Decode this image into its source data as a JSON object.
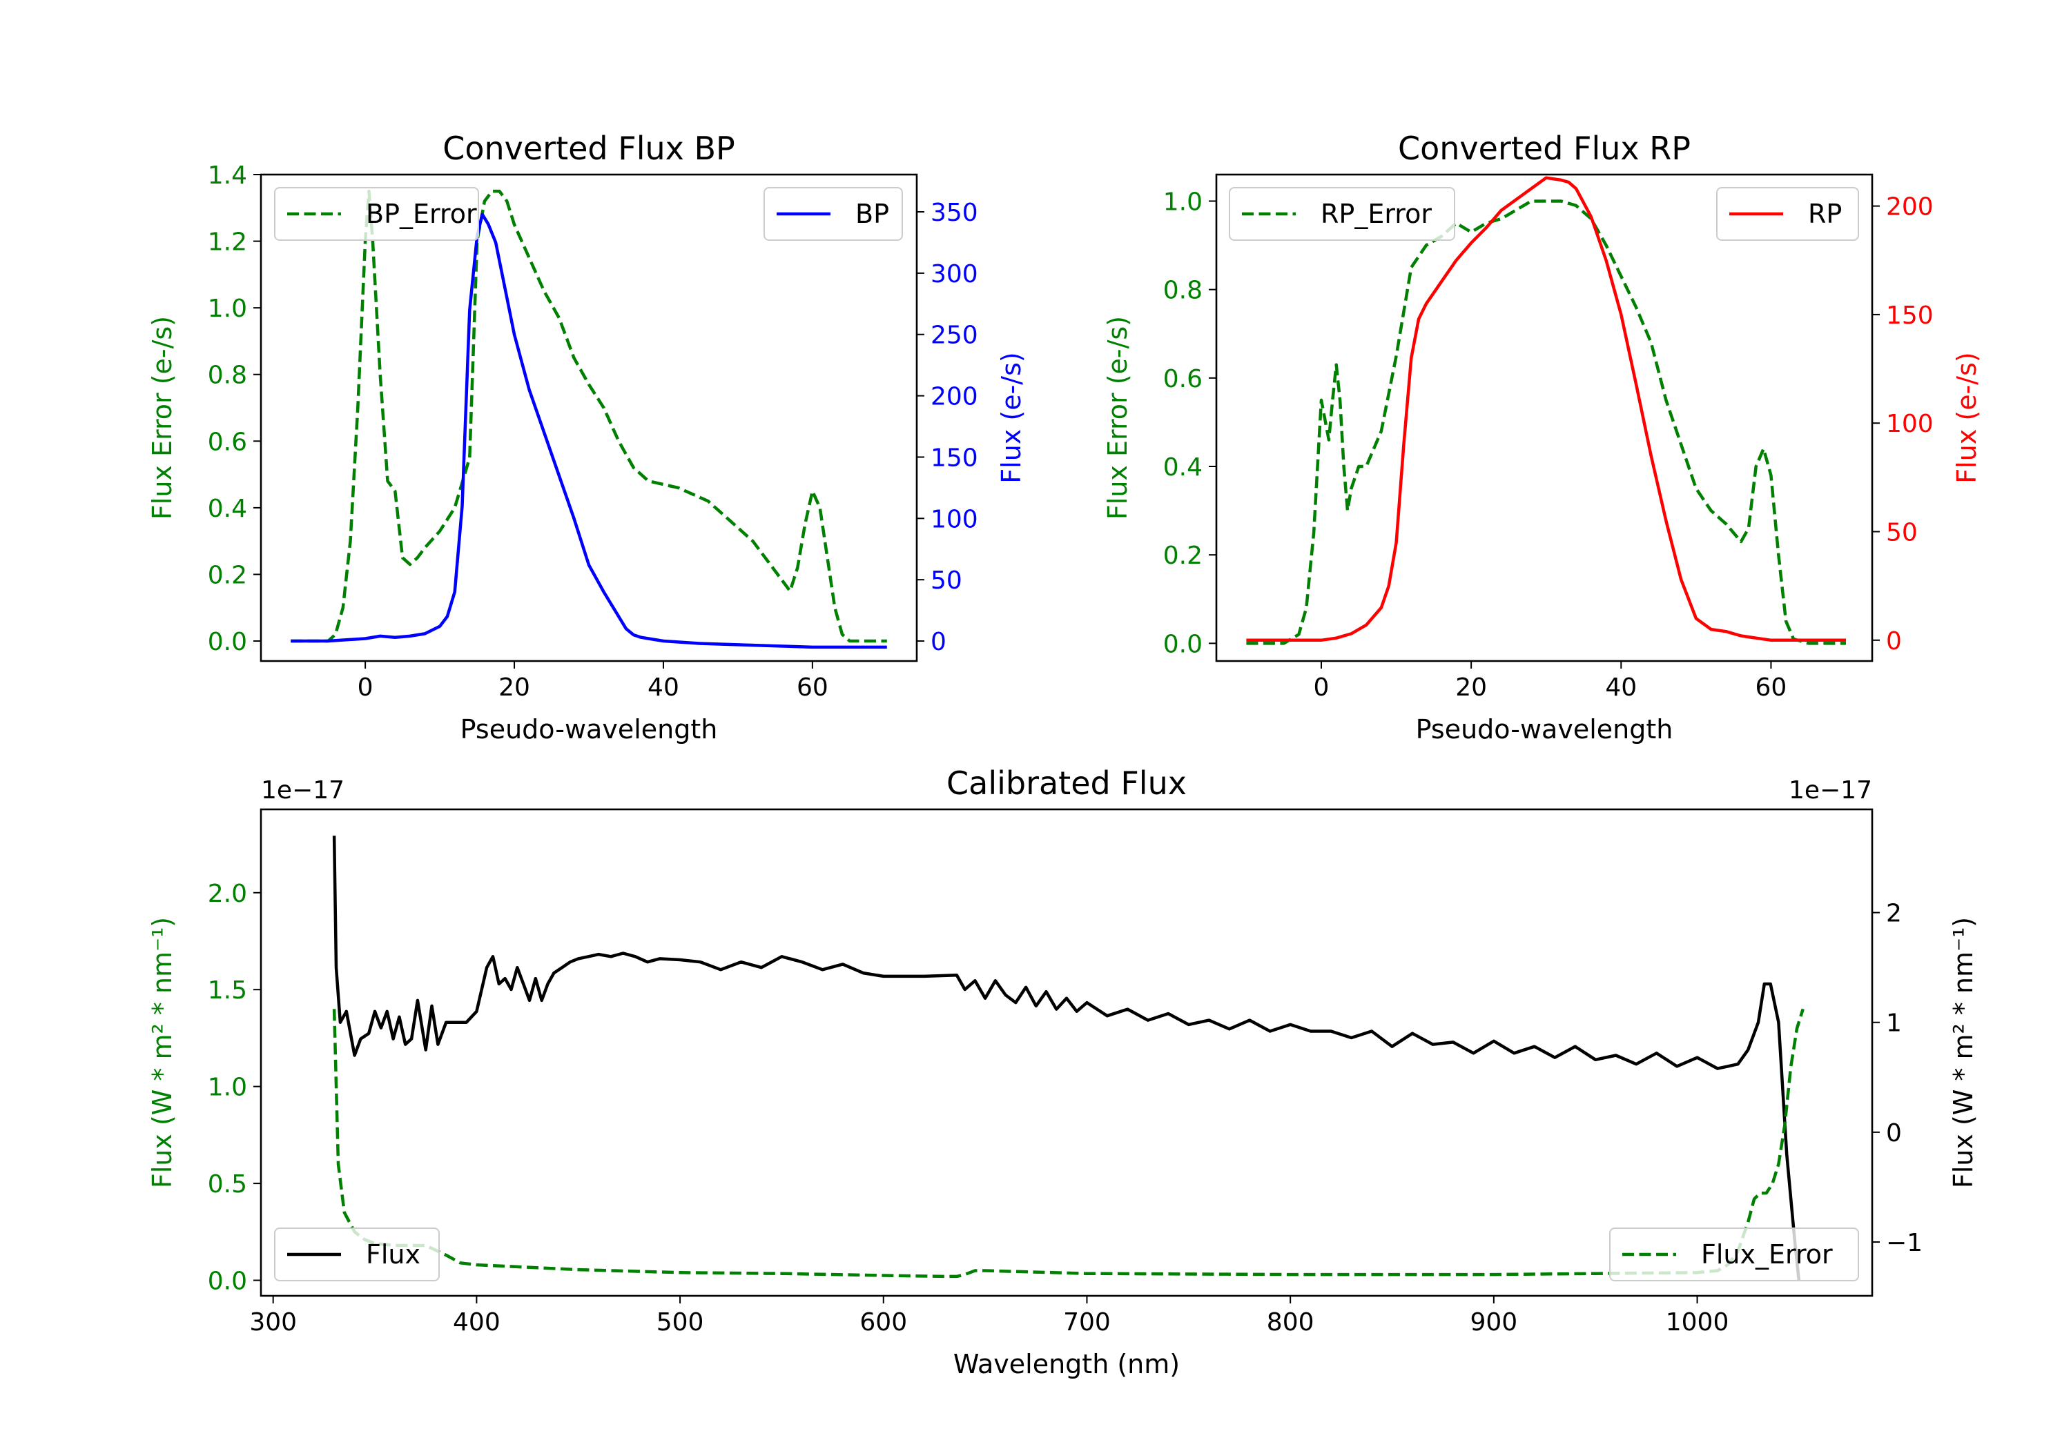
{
  "chart_data": [
    {
      "type": "line",
      "title": "Converted Flux BP",
      "xlabel": "Pseudo-wavelength",
      "ylabel": "Flux Error (e-/s)",
      "ylabel_right": "Flux (e-/s)",
      "xlim": [
        -14,
        74
      ],
      "ylim": [
        -0.06,
        1.4
      ],
      "ylim_right": [
        -16.3,
        380.4
      ],
      "xticks": [
        {
          "v": 0,
          "label": "0"
        },
        {
          "v": 20,
          "label": "20"
        },
        {
          "v": 40,
          "label": "40"
        },
        {
          "v": 60,
          "label": "60"
        }
      ],
      "yticks": [
        {
          "v": 0,
          "label": "0.0"
        },
        {
          "v": 0.2,
          "label": "0.2"
        },
        {
          "v": 0.4,
          "label": "0.4"
        },
        {
          "v": 0.6,
          "label": "0.6"
        },
        {
          "v": 0.8,
          "label": "0.8"
        },
        {
          "v": 1.0,
          "label": "1.0"
        },
        {
          "v": 1.2,
          "label": "1.2"
        },
        {
          "v": 1.4,
          "label": "1.4"
        }
      ],
      "yticks_right": [
        {
          "v": 0,
          "label": "0"
        },
        {
          "v": 50,
          "label": "50"
        },
        {
          "v": 100,
          "label": "100"
        },
        {
          "v": 150,
          "label": "150"
        },
        {
          "v": 200,
          "label": "200"
        },
        {
          "v": 250,
          "label": "250"
        },
        {
          "v": 300,
          "label": "300"
        },
        {
          "v": 350,
          "label": "350"
        }
      ],
      "left_color": "#008000",
      "right_color": "#0000ff",
      "legend_left": {
        "label": "BP_Error",
        "position": "upper left"
      },
      "legend_right": {
        "label": "BP",
        "position": "upper right"
      },
      "series": [
        {
          "name": "BP_Error",
          "axis": "left",
          "color": "#008000",
          "style": "dashed",
          "x": [
            -10,
            -5,
            -4,
            -3,
            -2,
            -1,
            0,
            0.5,
            1,
            2,
            3,
            4,
            5,
            6,
            7,
            8,
            10,
            12,
            14,
            15,
            16,
            17,
            18,
            19,
            20,
            22,
            24,
            26,
            28,
            30,
            32,
            34,
            36,
            38,
            40,
            42,
            44,
            46,
            48,
            50,
            52,
            54,
            56,
            57,
            58,
            59,
            60,
            61,
            62,
            63,
            64,
            65,
            70
          ],
          "y": [
            0,
            0,
            0.02,
            0.1,
            0.3,
            0.7,
            1.2,
            1.35,
            1.2,
            0.8,
            0.48,
            0.45,
            0.25,
            0.23,
            0.25,
            0.28,
            0.33,
            0.4,
            0.55,
            1.2,
            1.32,
            1.35,
            1.35,
            1.32,
            1.25,
            1.15,
            1.05,
            0.97,
            0.85,
            0.77,
            0.7,
            0.6,
            0.52,
            0.48,
            0.47,
            0.46,
            0.44,
            0.42,
            0.38,
            0.34,
            0.3,
            0.24,
            0.18,
            0.15,
            0.22,
            0.35,
            0.45,
            0.4,
            0.25,
            0.1,
            0.02,
            0,
            0
          ]
        },
        {
          "name": "BP",
          "axis": "right",
          "color": "#0000ff",
          "style": "solid",
          "x": [
            -10,
            -5,
            0,
            2,
            4,
            6,
            8,
            10,
            11,
            12,
            13,
            14,
            15,
            15.7,
            16.5,
            17.5,
            18.5,
            20,
            22,
            24,
            26,
            28,
            30,
            32,
            34,
            35,
            36,
            37,
            38,
            40,
            45,
            50,
            55,
            60,
            65,
            70
          ],
          "y": [
            0,
            0,
            2,
            4,
            3,
            4,
            6,
            12,
            20,
            40,
            110,
            270,
            330,
            348,
            340,
            325,
            295,
            250,
            205,
            170,
            135,
            100,
            62,
            40,
            20,
            10,
            5,
            3,
            2,
            0,
            -2,
            -3,
            -4,
            -5,
            -5,
            -5
          ]
        }
      ]
    },
    {
      "type": "line",
      "title": "Converted Flux RP",
      "xlabel": "Pseudo-wavelength",
      "ylabel": "Flux Error (e-/s)",
      "ylabel_right": "Flux (e-/s)",
      "xlim": [
        -14,
        73.5
      ],
      "ylim": [
        -0.04,
        1.06
      ],
      "ylim_right": [
        -9.6,
        214.5
      ],
      "xticks": [
        {
          "v": 0,
          "label": "0"
        },
        {
          "v": 20,
          "label": "20"
        },
        {
          "v": 40,
          "label": "40"
        },
        {
          "v": 60,
          "label": "60"
        }
      ],
      "yticks": [
        {
          "v": 0,
          "label": "0.0"
        },
        {
          "v": 0.2,
          "label": "0.2"
        },
        {
          "v": 0.4,
          "label": "0.4"
        },
        {
          "v": 0.6,
          "label": "0.6"
        },
        {
          "v": 0.8,
          "label": "0.8"
        },
        {
          "v": 1.0,
          "label": "1.0"
        }
      ],
      "yticks_right": [
        {
          "v": 0,
          "label": "0"
        },
        {
          "v": 50,
          "label": "50"
        },
        {
          "v": 100,
          "label": "100"
        },
        {
          "v": 150,
          "label": "150"
        },
        {
          "v": 200,
          "label": "200"
        }
      ],
      "left_color": "#008000",
      "right_color": "#ff0000",
      "legend_left": {
        "label": "RP_Error",
        "position": "upper left"
      },
      "legend_right": {
        "label": "RP",
        "position": "upper right"
      },
      "series": [
        {
          "name": "RP_Error",
          "axis": "left",
          "color": "#008000",
          "style": "dashed",
          "x": [
            -10,
            -5,
            -3,
            -2,
            -1,
            0,
            1,
            1.5,
            2,
            2.5,
            3,
            3.5,
            4,
            5,
            6,
            8,
            10,
            12,
            14,
            16,
            18,
            20,
            22,
            24,
            26,
            28,
            30,
            32,
            34,
            36,
            38,
            40,
            42,
            44,
            46,
            48,
            50,
            52,
            54,
            56,
            57,
            58,
            59,
            60,
            61,
            62,
            63,
            65,
            70
          ],
          "y": [
            0,
            0,
            0.02,
            0.08,
            0.25,
            0.55,
            0.46,
            0.55,
            0.63,
            0.55,
            0.4,
            0.3,
            0.35,
            0.4,
            0.4,
            0.48,
            0.65,
            0.85,
            0.9,
            0.92,
            0.95,
            0.93,
            0.95,
            0.96,
            0.98,
            1.0,
            1.0,
            1.0,
            0.99,
            0.96,
            0.9,
            0.83,
            0.76,
            0.68,
            0.55,
            0.45,
            0.35,
            0.3,
            0.27,
            0.23,
            0.26,
            0.4,
            0.44,
            0.38,
            0.2,
            0.05,
            0.01,
            0,
            0
          ]
        },
        {
          "name": "RP",
          "axis": "right",
          "color": "#ff0000",
          "style": "solid",
          "x": [
            -10,
            -5,
            0,
            2,
            4,
            6,
            8,
            9,
            10,
            11,
            12,
            13,
            14,
            16,
            18,
            20,
            22,
            24,
            26,
            28,
            30,
            32,
            33,
            34,
            36,
            38,
            40,
            42,
            44,
            46,
            48,
            50,
            52,
            54,
            56,
            58,
            60,
            62,
            65,
            70
          ],
          "y": [
            0,
            0,
            0,
            1,
            3,
            7,
            15,
            25,
            45,
            90,
            130,
            148,
            155,
            165,
            175,
            183,
            190,
            198,
            203,
            208,
            213,
            212,
            211,
            208,
            195,
            175,
            150,
            118,
            85,
            55,
            28,
            10,
            5,
            4,
            2,
            1,
            0,
            0,
            0,
            0
          ]
        }
      ]
    },
    {
      "type": "line",
      "title": "Calibrated Flux",
      "xlabel": "Wavelength (nm)",
      "ylabel": "Flux (W * m² * nm⁻¹)",
      "ylabel_right": "Flux (W * m² * nm⁻¹)",
      "y_offset_label": "1e−17",
      "y_offset_label_right": "1e−17",
      "xlim": [
        294,
        1086
      ],
      "ylim": [
        -0.08,
        2.43
      ],
      "ylim_right": [
        -1.49,
        2.94
      ],
      "xticks": [
        {
          "v": 300,
          "label": "300"
        },
        {
          "v": 400,
          "label": "400"
        },
        {
          "v": 500,
          "label": "500"
        },
        {
          "v": 600,
          "label": "600"
        },
        {
          "v": 700,
          "label": "700"
        },
        {
          "v": 800,
          "label": "800"
        },
        {
          "v": 900,
          "label": "900"
        },
        {
          "v": 1000,
          "label": "1000"
        }
      ],
      "yticks": [
        {
          "v": 0,
          "label": "0.0"
        },
        {
          "v": 0.5,
          "label": "0.5"
        },
        {
          "v": 1.0,
          "label": "1.0"
        },
        {
          "v": 1.5,
          "label": "1.5"
        },
        {
          "v": 2.0,
          "label": "2.0"
        }
      ],
      "yticks_right": [
        {
          "v": -1,
          "label": "−1"
        },
        {
          "v": 0,
          "label": "0"
        },
        {
          "v": 1,
          "label": "1"
        },
        {
          "v": 2,
          "label": "2"
        }
      ],
      "left_color": "#008000",
      "right_color": "#000000",
      "legend_left": {
        "label": "Flux",
        "position": "lower left"
      },
      "legend_right": {
        "label": "Flux_Error",
        "position": "lower right"
      },
      "series": [
        {
          "name": "Flux",
          "axis": "right",
          "color": "#000000",
          "style": "solid",
          "x": [
            330,
            331,
            333,
            336,
            340,
            343,
            347,
            350,
            353,
            356,
            359,
            362,
            365,
            368,
            371,
            375,
            378,
            381,
            385,
            390,
            395,
            400,
            405,
            408,
            411,
            414,
            417,
            420,
            423,
            426,
            429,
            432,
            435,
            438,
            442,
            446,
            450,
            455,
            460,
            466,
            472,
            478,
            484,
            490,
            500,
            510,
            520,
            530,
            540,
            550,
            560,
            570,
            580,
            590,
            600,
            620,
            636,
            640,
            645,
            650,
            655,
            660,
            665,
            670,
            675,
            680,
            685,
            690,
            695,
            700,
            710,
            720,
            730,
            740,
            750,
            760,
            770,
            780,
            790,
            800,
            810,
            820,
            830,
            840,
            850,
            860,
            870,
            880,
            890,
            900,
            910,
            920,
            930,
            940,
            950,
            960,
            970,
            980,
            990,
            1000,
            1010,
            1015,
            1020,
            1025,
            1030,
            1033,
            1036,
            1040,
            1044,
            1048,
            1050
          ],
          "y": [
            2.7,
            1.5,
            1.0,
            1.1,
            0.7,
            0.85,
            0.9,
            1.1,
            0.95,
            1.1,
            0.85,
            1.05,
            0.8,
            0.85,
            1.2,
            0.75,
            1.15,
            0.8,
            1.0,
            1.0,
            1.0,
            1.1,
            1.5,
            1.6,
            1.35,
            1.4,
            1.3,
            1.5,
            1.35,
            1.2,
            1.4,
            1.2,
            1.35,
            1.45,
            1.5,
            1.55,
            1.58,
            1.6,
            1.62,
            1.6,
            1.63,
            1.6,
            1.55,
            1.58,
            1.57,
            1.55,
            1.48,
            1.55,
            1.5,
            1.6,
            1.55,
            1.48,
            1.53,
            1.45,
            1.42,
            1.42,
            1.43,
            1.3,
            1.38,
            1.22,
            1.38,
            1.25,
            1.18,
            1.32,
            1.15,
            1.28,
            1.12,
            1.22,
            1.1,
            1.18,
            1.06,
            1.12,
            1.02,
            1.08,
            0.98,
            1.02,
            0.94,
            1.02,
            0.92,
            0.98,
            0.92,
            0.92,
            0.86,
            0.92,
            0.78,
            0.9,
            0.8,
            0.82,
            0.72,
            0.83,
            0.72,
            0.78,
            0.68,
            0.78,
            0.66,
            0.7,
            0.62,
            0.72,
            0.6,
            0.68,
            0.58,
            0.6,
            0.62,
            0.75,
            1.0,
            1.35,
            1.35,
            1.0,
            -0.2,
            -1.0,
            -1.35
          ]
        },
        {
          "name": "Flux_Error",
          "axis": "left",
          "color": "#008000",
          "style": "dashed",
          "x": [
            330,
            332,
            335,
            340,
            345,
            350,
            360,
            375,
            385,
            392,
            400,
            420,
            450,
            500,
            550,
            600,
            630,
            636,
            640,
            645,
            650,
            700,
            800,
            900,
            950,
            1000,
            1010,
            1015,
            1020,
            1025,
            1028,
            1031,
            1034,
            1037,
            1040,
            1043,
            1046,
            1049,
            1052
          ],
          "y": [
            1.4,
            0.6,
            0.35,
            0.25,
            0.21,
            0.19,
            0.18,
            0.18,
            0.13,
            0.09,
            0.08,
            0.07,
            0.055,
            0.04,
            0.035,
            0.025,
            0.02,
            0.02,
            0.03,
            0.05,
            0.05,
            0.035,
            0.03,
            0.03,
            0.035,
            0.04,
            0.05,
            0.08,
            0.15,
            0.3,
            0.42,
            0.45,
            0.45,
            0.5,
            0.6,
            0.8,
            1.1,
            1.3,
            1.4
          ]
        }
      ]
    }
  ]
}
